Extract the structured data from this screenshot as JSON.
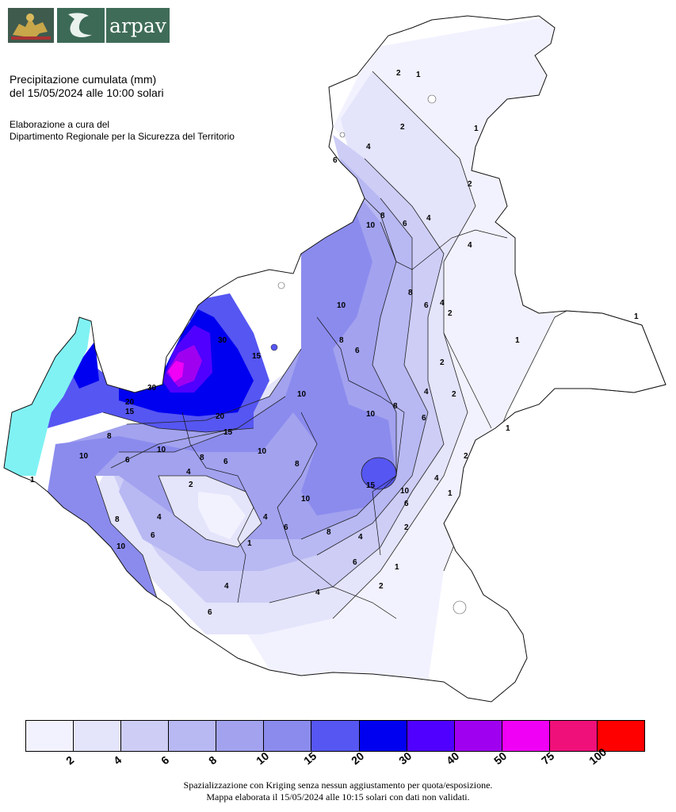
{
  "header": {
    "logo_text": "arpav",
    "title_line1": "Precipitazione cumulata (mm)",
    "title_line2": "del 15/05/2024 alle 10:00 solari",
    "credit_line1": "Elaborazione a cura del",
    "credit_line2": "Dipartimento Regionale per la Sicurezza del Territorio"
  },
  "map": {
    "region": "Veneto",
    "contour_labels": [
      "1",
      "2",
      "4",
      "6",
      "8",
      "10",
      "15",
      "20",
      "30"
    ]
  },
  "legend": {
    "cells": [
      {
        "color": "#f2f2ff"
      },
      {
        "color": "#e4e4fb"
      },
      {
        "color": "#cdcdf6"
      },
      {
        "color": "#b8b8f3"
      },
      {
        "color": "#a2a2ef"
      },
      {
        "color": "#8b8bee"
      },
      {
        "color": "#5656f2"
      },
      {
        "color": "#0000f0"
      },
      {
        "color": "#5000ff"
      },
      {
        "color": "#a000f0"
      },
      {
        "color": "#f000f5"
      },
      {
        "color": "#f0107a"
      },
      {
        "color": "#ff0000"
      }
    ],
    "labels": [
      "2",
      "4",
      "6",
      "8",
      "10",
      "15",
      "20",
      "30",
      "40",
      "50",
      "75",
      "100"
    ]
  },
  "footer": {
    "line1": "Spazializzazione con Kriging senza nessun aggiustamento per quota/esposizione.",
    "line2": "Mappa elaborata il 15/05/2024 alle 10:15 solari con dati non validati."
  }
}
